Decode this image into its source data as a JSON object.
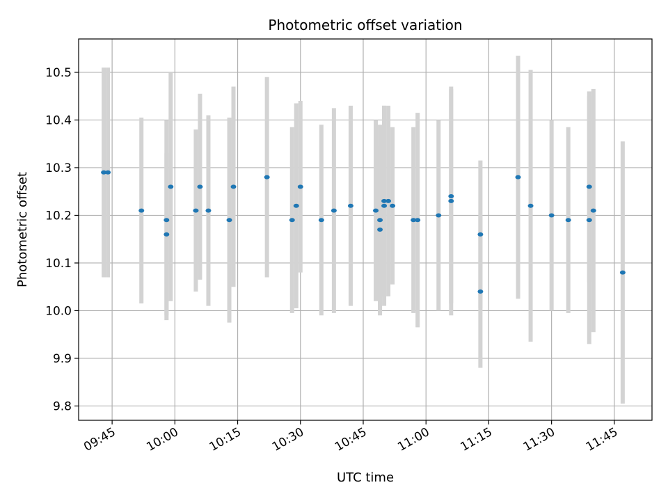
{
  "chart_data": {
    "type": "scatter",
    "title": "Photometric offset variation",
    "xlabel": "UTC time",
    "ylabel": "Photometric offset",
    "x_ticks": [
      "09:45",
      "10:00",
      "10:15",
      "10:30",
      "10:45",
      "11:00",
      "11:15",
      "11:30",
      "11:45"
    ],
    "y_ticks": [
      "9.8",
      "9.9",
      "10.0",
      "10.1",
      "10.2",
      "10.3",
      "10.4",
      "10.5"
    ],
    "xlim": [
      "09:37",
      "11:54"
    ],
    "ylim": [
      9.77,
      10.57
    ],
    "grid": true,
    "colors": {
      "marker": "#1f77b4",
      "errorbar": "#d3d3d3",
      "grid": "#b0b0b0"
    },
    "points": [
      {
        "x": "09:43",
        "y": 10.29,
        "yerr": 0.22
      },
      {
        "x": "09:44",
        "y": 10.29,
        "yerr": 0.22
      },
      {
        "x": "09:52",
        "y": 10.21,
        "yerr": 0.195
      },
      {
        "x": "09:58",
        "y": 10.16,
        "yerr": 0.17
      },
      {
        "x": "09:58",
        "y": 10.19,
        "yerr": 0.21
      },
      {
        "x": "09:59",
        "y": 10.26,
        "yerr": 0.24
      },
      {
        "x": "10:05",
        "y": 10.21,
        "yerr": 0.17
      },
      {
        "x": "10:06",
        "y": 10.26,
        "yerr": 0.195
      },
      {
        "x": "10:08",
        "y": 10.21,
        "yerr": 0.2
      },
      {
        "x": "10:13",
        "y": 10.19,
        "yerr": 0.215
      },
      {
        "x": "10:14",
        "y": 10.26,
        "yerr": 0.21
      },
      {
        "x": "10:22",
        "y": 10.28,
        "yerr": 0.21
      },
      {
        "x": "10:28",
        "y": 10.19,
        "yerr": 0.195
      },
      {
        "x": "10:29",
        "y": 10.22,
        "yerr": 0.215
      },
      {
        "x": "10:30",
        "y": 10.26,
        "yerr": 0.18
      },
      {
        "x": "10:35",
        "y": 10.19,
        "yerr": 0.2
      },
      {
        "x": "10:38",
        "y": 10.21,
        "yerr": 0.215
      },
      {
        "x": "10:42",
        "y": 10.22,
        "yerr": 0.21
      },
      {
        "x": "10:48",
        "y": 10.21,
        "yerr": 0.19
      },
      {
        "x": "10:49",
        "y": 10.17,
        "yerr": 0.175
      },
      {
        "x": "10:49",
        "y": 10.19,
        "yerr": 0.2
      },
      {
        "x": "10:50",
        "y": 10.22,
        "yerr": 0.21
      },
      {
        "x": "10:50",
        "y": 10.23,
        "yerr": 0.2
      },
      {
        "x": "10:51",
        "y": 10.23,
        "yerr": 0.2
      },
      {
        "x": "10:52",
        "y": 10.22,
        "yerr": 0.165
      },
      {
        "x": "10:57",
        "y": 10.19,
        "yerr": 0.195
      },
      {
        "x": "10:58",
        "y": 10.19,
        "yerr": 0.225
      },
      {
        "x": "11:03",
        "y": 10.2,
        "yerr": 0.2
      },
      {
        "x": "11:06",
        "y": 10.23,
        "yerr": 0.24
      },
      {
        "x": "11:06",
        "y": 10.24,
        "yerr": 0.225
      },
      {
        "x": "11:13",
        "y": 10.16,
        "yerr": 0.155
      },
      {
        "x": "11:13",
        "y": 10.04,
        "yerr": 0.16
      },
      {
        "x": "11:22",
        "y": 10.28,
        "yerr": 0.255
      },
      {
        "x": "11:25",
        "y": 10.22,
        "yerr": 0.285
      },
      {
        "x": "11:30",
        "y": 10.2,
        "yerr": 0.2
      },
      {
        "x": "11:34",
        "y": 10.19,
        "yerr": 0.195
      },
      {
        "x": "11:39",
        "y": 10.26,
        "yerr": 0.2
      },
      {
        "x": "11:39",
        "y": 10.19,
        "yerr": 0.26
      },
      {
        "x": "11:40",
        "y": 10.21,
        "yerr": 0.255
      },
      {
        "x": "11:47",
        "y": 10.08,
        "yerr": 0.275
      }
    ]
  }
}
